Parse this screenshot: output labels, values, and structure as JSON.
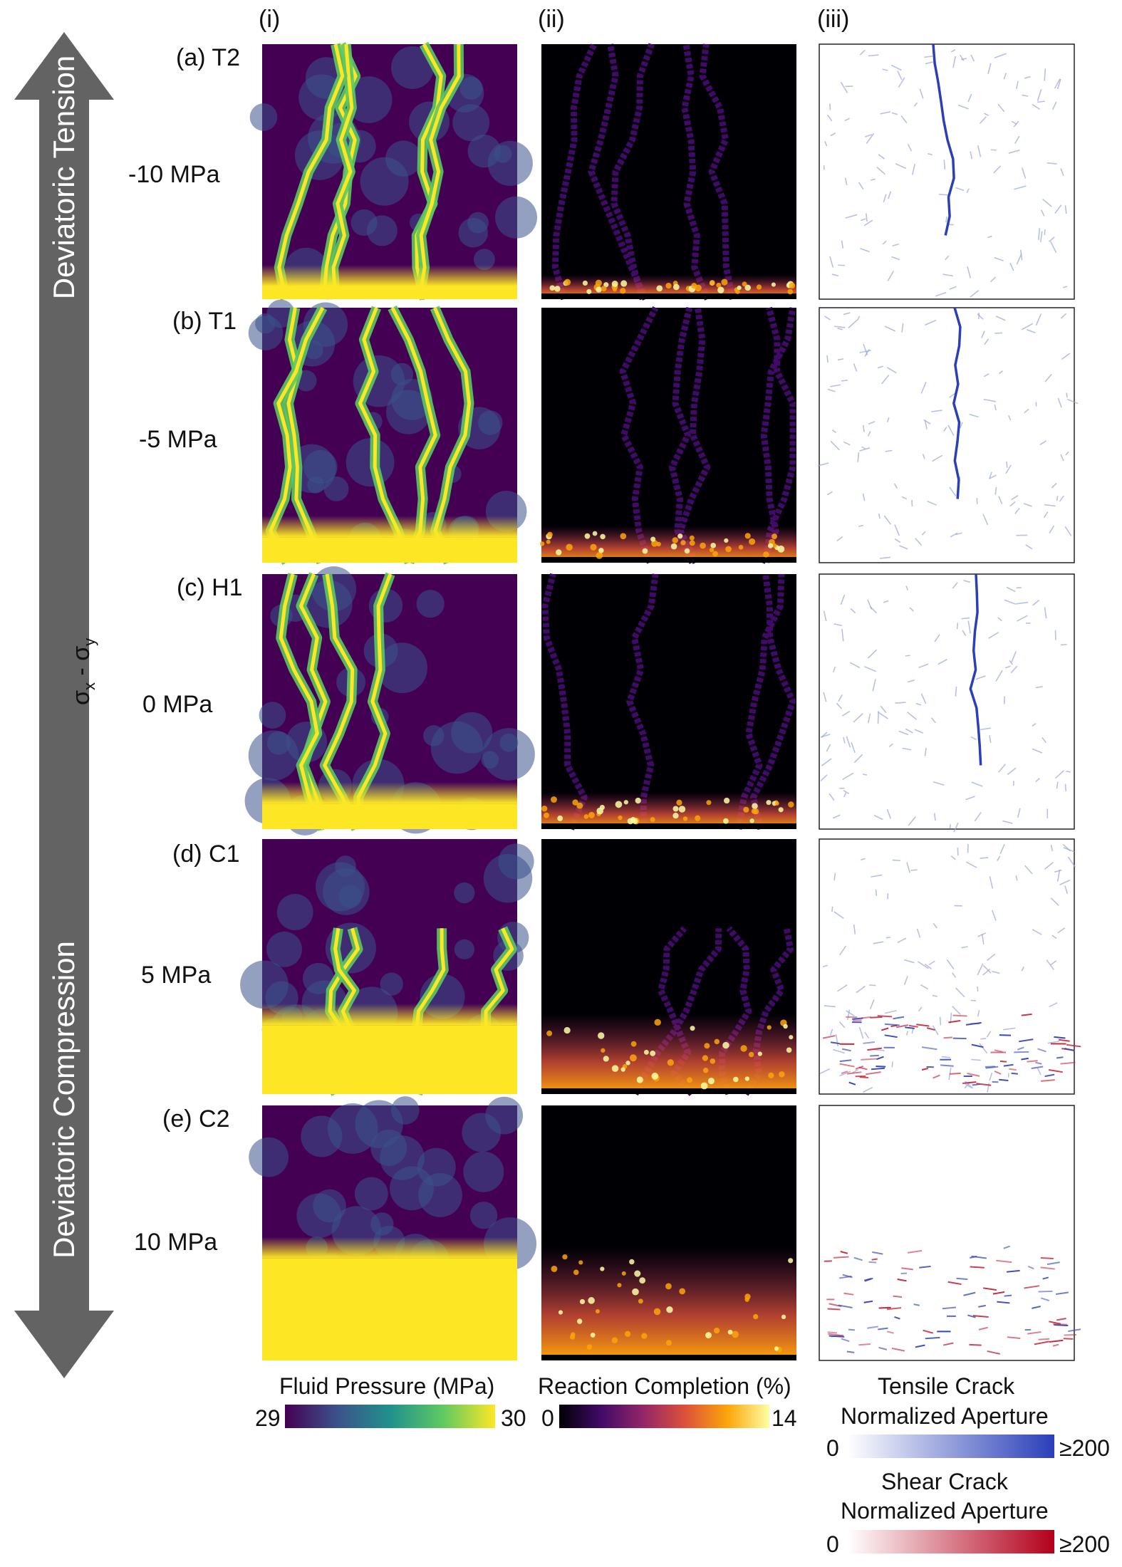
{
  "stress_axis": {
    "top_label": "Deviatoric Tension",
    "bottom_label": "Deviatoric Compression",
    "axis_label_main": "σ",
    "axis_label_sub1": "x",
    "axis_label_sep": " - σ",
    "axis_label_sub2": "y"
  },
  "columns": [
    "(i)",
    "(ii)",
    "(iii)"
  ],
  "rows": [
    {
      "tag": "(a)",
      "case": "T2",
      "stress": "-10 MPa",
      "front": 0.0
    },
    {
      "tag": "(b)",
      "case": "T1",
      "stress": "-5 MPa",
      "front": 0.05
    },
    {
      "tag": "(c)",
      "case": "H1",
      "stress": "0 MPa",
      "front": 0.05
    },
    {
      "tag": "(d)",
      "case": "C1",
      "stress": "5 MPa",
      "front": 0.22
    },
    {
      "tag": "(e)",
      "case": "C2",
      "stress": "10 MPa",
      "front": 0.35
    }
  ],
  "colorbars": {
    "pressure": {
      "title": "Fluid Pressure (MPa)",
      "min": "29",
      "max": "30",
      "stops": [
        "#440154",
        "#3b528b",
        "#21918c",
        "#5ec962",
        "#fde725"
      ]
    },
    "reaction": {
      "title": "Reaction Completion (%)",
      "min": "0",
      "max": "14",
      "stops": [
        "#000004",
        "#420a68",
        "#932667",
        "#dd513a",
        "#fca50a",
        "#fcffa4"
      ]
    },
    "tensile": {
      "title1": "Tensile Crack",
      "title2": "Normalized Aperture",
      "min": "0",
      "max": "≥200",
      "stops": [
        "#ffffff",
        "#2a3fb8"
      ]
    },
    "shear": {
      "title1": "Shear Crack",
      "title2": "Normalized Aperture",
      "min": "0",
      "max": "≥200",
      "stops": [
        "#ffffff",
        "#b3001b"
      ]
    }
  }
}
